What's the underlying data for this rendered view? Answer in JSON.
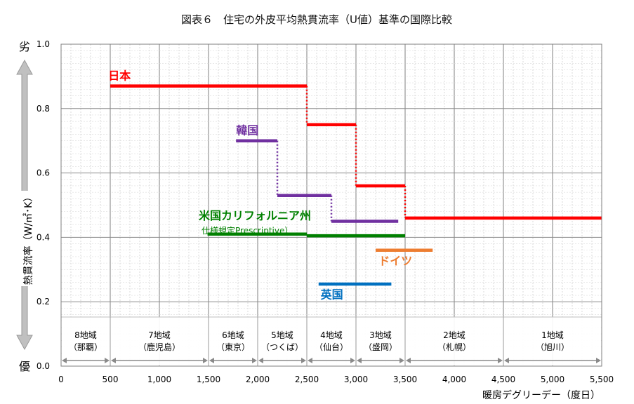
{
  "chart_data": {
    "type": "line",
    "title": "図表６　住宅の外皮平均熱貫流率（U値）基準の国際比較",
    "xlabel": "暖房デグリーデー（度日）",
    "ylabel": "熱貫流率（W/㎡･K）",
    "y_top_label": "劣",
    "y_bottom_label": "優",
    "xlim": [
      0,
      5500
    ],
    "ylim": [
      0,
      1.0
    ],
    "x_ticks": [
      0,
      500,
      1000,
      1500,
      2000,
      2500,
      3000,
      3500,
      4000,
      4500,
      5000,
      5500
    ],
    "x_tick_labels": [
      "0",
      "500",
      "1,000",
      "1,500",
      "2,000",
      "2,500",
      "3,000",
      "3,500",
      "4,000",
      "4,500",
      "5,000",
      "5,500"
    ],
    "y_ticks": [
      0.0,
      0.2,
      0.4,
      0.6,
      0.8,
      1.0
    ],
    "y_tick_labels": [
      "0.0",
      "0.2",
      "0.4",
      "0.6",
      "0.8",
      "1.0"
    ],
    "grid": true,
    "zones": [
      {
        "from": 0,
        "to": 500,
        "label": "8地域",
        "sub": "（那覇）"
      },
      {
        "from": 500,
        "to": 1500,
        "label": "7地域",
        "sub": "（鹿児島）"
      },
      {
        "from": 1500,
        "to": 2000,
        "label": "6地域",
        "sub": "（東京）"
      },
      {
        "from": 2000,
        "to": 2500,
        "label": "5地域",
        "sub": "（つくば）"
      },
      {
        "from": 2500,
        "to": 3000,
        "label": "4地域",
        "sub": "（仙台）"
      },
      {
        "from": 3000,
        "to": 3500,
        "label": "3地域",
        "sub": "（盛岡）"
      },
      {
        "from": 3500,
        "to": 4500,
        "label": "2地域",
        "sub": "（札幌）"
      },
      {
        "from": 4500,
        "to": 5500,
        "label": "1地域",
        "sub": "（旭川）"
      }
    ],
    "series": [
      {
        "name": "日本",
        "color": "#ff0000",
        "segments": [
          {
            "x": [
              500,
              2500
            ],
            "y": 0.87
          },
          {
            "x": [
              2500,
              3000
            ],
            "y": 0.75
          },
          {
            "x": [
              3000,
              3500
            ],
            "y": 0.56
          },
          {
            "x": [
              3500,
              5500
            ],
            "y": 0.46
          }
        ],
        "label_at": [
          480,
          0.89
        ]
      },
      {
        "name": "韓国",
        "color": "#7030a0",
        "segments": [
          {
            "x": [
              1780,
              2200
            ],
            "y": 0.7
          },
          {
            "x": [
              2200,
              2750
            ],
            "y": 0.53
          },
          {
            "x": [
              2750,
              3430
            ],
            "y": 0.45
          }
        ],
        "label_at": [
          1780,
          0.72
        ]
      },
      {
        "name": "米国カリフォルニア州",
        "sublabel": "仕様規定Prescriptive）",
        "color": "#008000",
        "segments": [
          {
            "x": [
              1490,
              2500
            ],
            "y": 0.41
          },
          {
            "x": [
              2500,
              3500
            ],
            "y": 0.405
          }
        ],
        "label_at": [
          1400,
          0.455
        ]
      },
      {
        "name": "ドイツ",
        "color": "#ed7d31",
        "segments": [
          {
            "x": [
              3200,
              3780
            ],
            "y": 0.36
          }
        ],
        "label_at": [
          3230,
          0.315
        ]
      },
      {
        "name": "英国",
        "color": "#0070c0",
        "segments": [
          {
            "x": [
              2620,
              3360
            ],
            "y": 0.255
          }
        ],
        "label_at": [
          2640,
          0.21
        ]
      }
    ]
  }
}
